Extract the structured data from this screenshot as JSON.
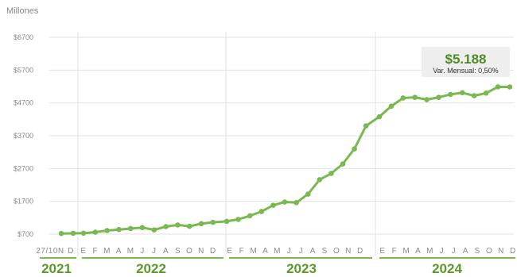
{
  "y_unit_label": "Millones",
  "callout": {
    "value": "$5.188",
    "subtitle": "Var. Mensual: 0,50%"
  },
  "colors": {
    "line": "#7ab850",
    "accent": "#5a9a2a",
    "grid": "#e2e2e2",
    "year_bar": "#7ab850"
  },
  "chart_data": {
    "type": "line",
    "title": "",
    "ylabel": "Millones",
    "ylim": [
      700,
      6700
    ],
    "yticks": [
      700,
      1700,
      2700,
      3700,
      4700,
      5700,
      6700
    ],
    "ytick_labels": [
      "$700",
      "$1700",
      "$2700",
      "$3700",
      "$4700",
      "$5700",
      "$6700"
    ],
    "x_tick_labels": {
      "2021": [
        "27/10N",
        "D"
      ],
      "2022": [
        "E",
        "F",
        "M",
        "A",
        "M",
        "J",
        "J",
        "A",
        "S",
        "O",
        "N",
        "D"
      ],
      "2023": [
        "E",
        "F",
        "M",
        "A",
        "M",
        "J",
        "J",
        "A",
        "S",
        "O",
        "N",
        "D"
      ],
      "2024": [
        "E",
        "F",
        "M",
        "A",
        "M",
        "J",
        "J",
        "A",
        "S",
        "O",
        "N",
        "D"
      ]
    },
    "years": [
      "2021",
      "2022",
      "2023",
      "2024"
    ],
    "grid": true,
    "series": [
      {
        "values": [
          720,
          725,
          730,
          760,
          810,
          840,
          870,
          900,
          830,
          930,
          980,
          940,
          1020,
          1060,
          1090,
          1150,
          1260,
          1390,
          1580,
          1680,
          1660,
          1920,
          2360,
          2550,
          2840,
          3300,
          4000,
          4280,
          4600,
          4850,
          4870,
          4800,
          4870,
          4960,
          5010,
          4920,
          5000,
          5190,
          5188
        ]
      }
    ]
  }
}
